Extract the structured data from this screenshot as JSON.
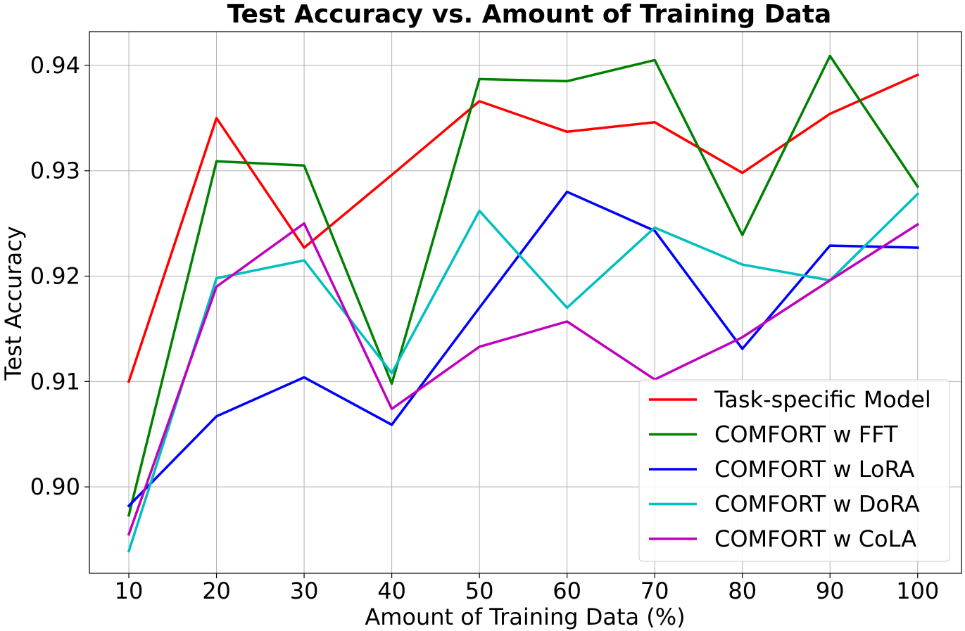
{
  "chart_data": {
    "type": "line",
    "title": "Test Accuracy vs. Amount of Training Data",
    "xlabel": "Amount of Training Data (%)",
    "ylabel": "Test Accuracy",
    "x": [
      10,
      20,
      30,
      40,
      50,
      60,
      70,
      80,
      90,
      100
    ],
    "xticks": [
      "10",
      "20",
      "30",
      "40",
      "50",
      "60",
      "70",
      "80",
      "90",
      "100"
    ],
    "yticks": [
      "0.90",
      "0.91",
      "0.92",
      "0.93",
      "0.94"
    ],
    "ytick_values": [
      0.9,
      0.91,
      0.92,
      0.93,
      0.94
    ],
    "xlim": [
      5.5,
      105
    ],
    "ylim": [
      0.8918,
      0.9432
    ],
    "grid": true,
    "legend_position": "lower-right",
    "series": [
      {
        "name": "Task-specific Model",
        "color": "#ff0000",
        "values": [
          0.91,
          0.935,
          0.9227,
          0.9296,
          0.9366,
          0.9337,
          0.9346,
          0.9298,
          0.9354,
          0.9391
        ]
      },
      {
        "name": "COMFORT w FFT",
        "color": "#008000",
        "values": [
          0.8973,
          0.9309,
          0.9305,
          0.9098,
          0.9387,
          0.9385,
          0.9405,
          0.9239,
          0.9409,
          0.9285
        ]
      },
      {
        "name": "COMFORT w LoRA",
        "color": "#0000ff",
        "values": [
          0.8982,
          0.9067,
          0.9104,
          0.9059,
          0.917,
          0.928,
          0.9243,
          0.9131,
          0.9229,
          0.9227
        ]
      },
      {
        "name": "COMFORT w DoRA",
        "color": "#00bfbf",
        "values": [
          0.8939,
          0.9198,
          0.9215,
          0.9108,
          0.9262,
          0.917,
          0.9246,
          0.9211,
          0.9196,
          0.9278
        ]
      },
      {
        "name": "COMFORT w CoLA",
        "color": "#bf00bf",
        "values": [
          0.8955,
          0.919,
          0.925,
          0.9074,
          0.9133,
          0.9157,
          0.9102,
          0.9142,
          0.9196,
          0.9249
        ]
      }
    ]
  }
}
